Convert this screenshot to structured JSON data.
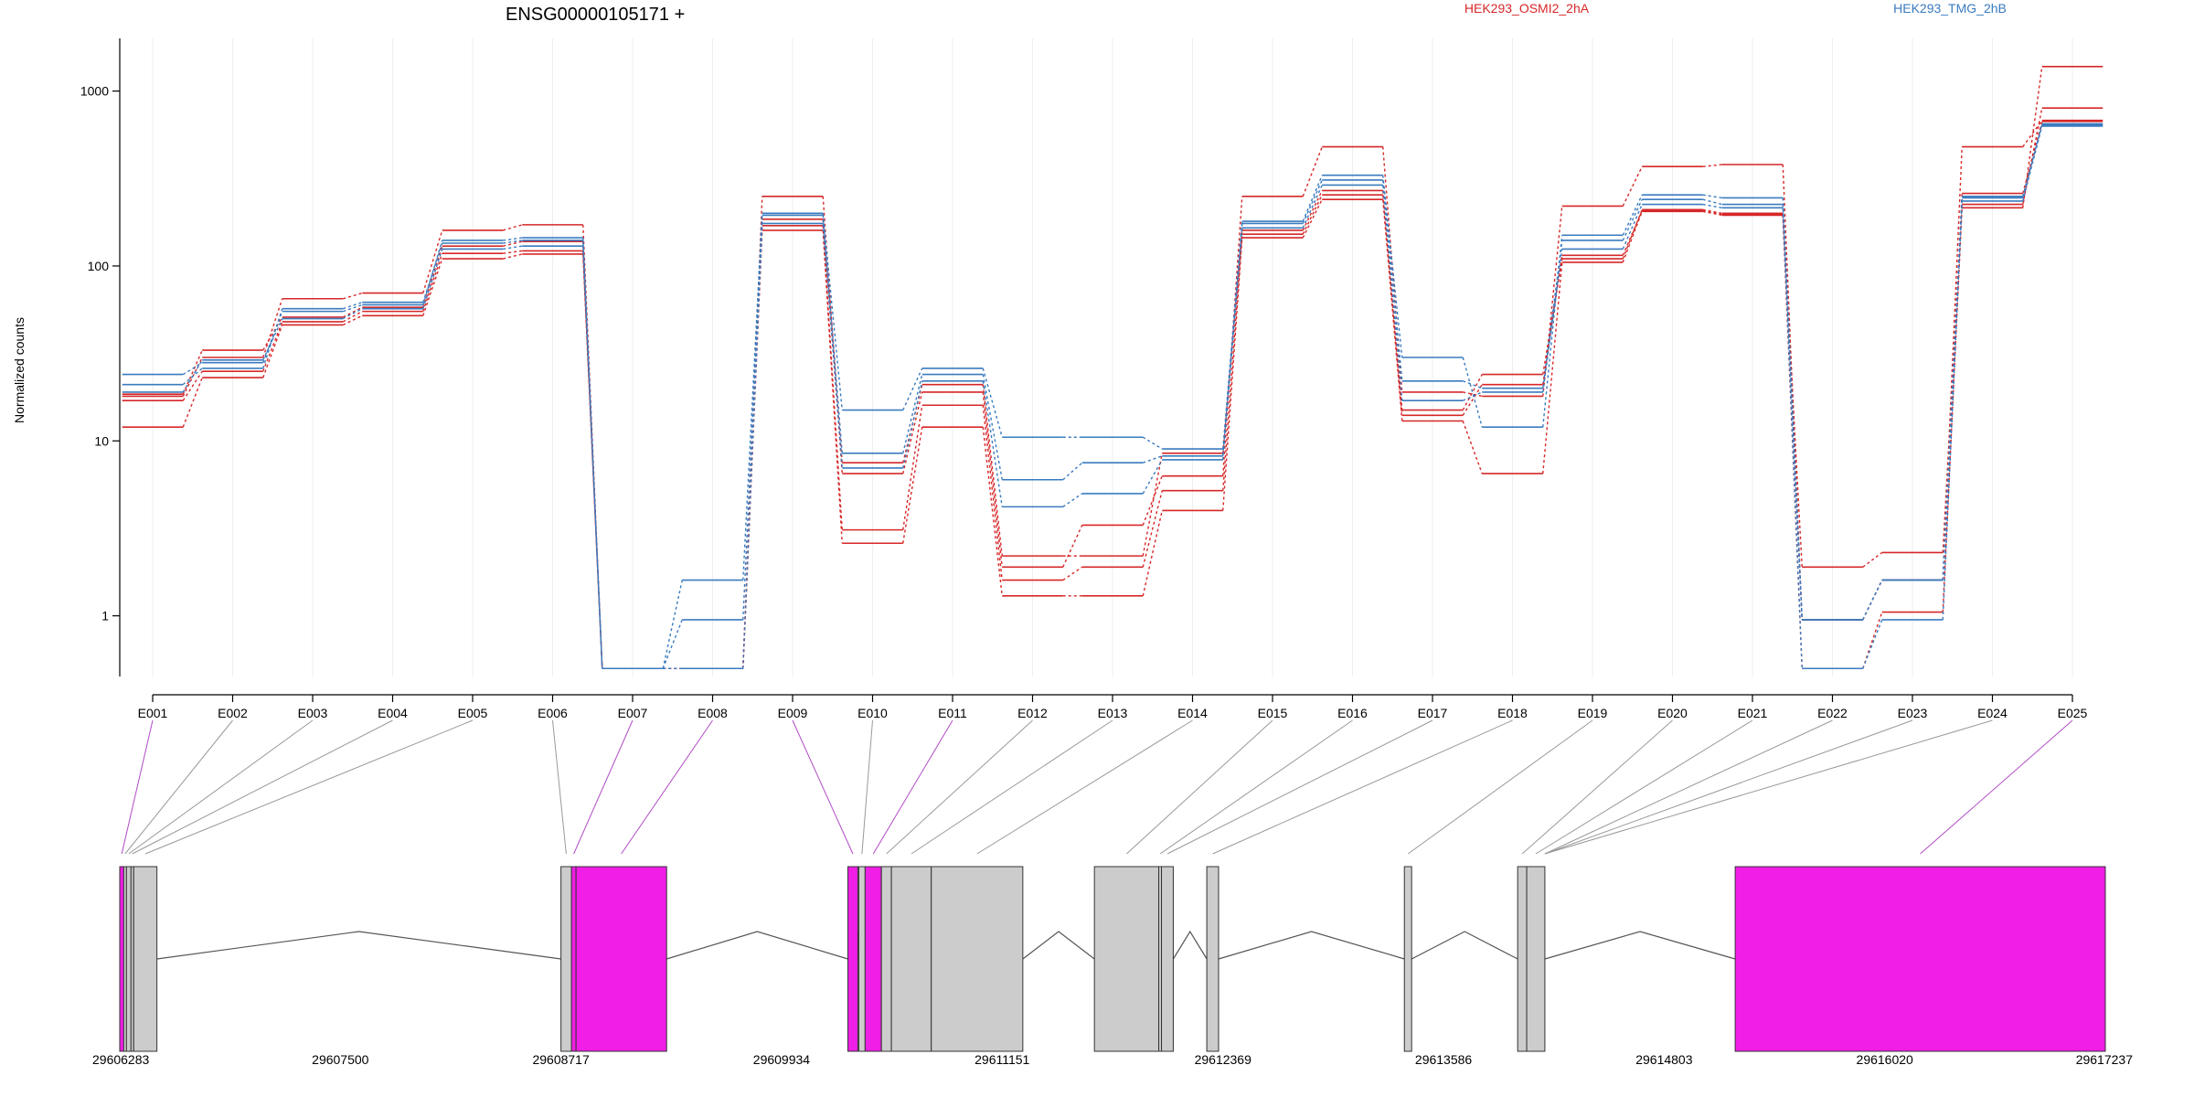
{
  "chart_data": {
    "type": "line",
    "title": "ENSG00000105171 +",
    "ylabel": "Normalized counts",
    "xlabel": "",
    "y_scale": "log",
    "y_ticks": [
      1,
      10,
      100,
      1000
    ],
    "y_tick_labels": [
      "1",
      "10",
      "100",
      "1000"
    ],
    "ylim": [
      0.45,
      2000
    ],
    "legend_placement": "top",
    "grid": "vertical-only",
    "legend": [
      {
        "label": "HEK293_OSMI2_2hA",
        "color": "#d62728"
      },
      {
        "label": "HEK293_TMG_2hB",
        "color": "#3a7bbf"
      }
    ],
    "categories": [
      "E001",
      "E002",
      "E003",
      "E004",
      "E005",
      "E006",
      "E007",
      "E008",
      "E009",
      "E010",
      "E011",
      "E012",
      "E013",
      "E014",
      "E015",
      "E016",
      "E017",
      "E018",
      "E019",
      "E020",
      "E021",
      "E022",
      "E023",
      "E024",
      "E025"
    ],
    "series": [
      {
        "group": 0,
        "values": [
          12,
          23,
          46,
          52,
          110,
          117,
          0.5,
          0.5,
          160,
          2.6,
          12,
          1.3,
          1.3,
          4,
          145,
          240,
          13,
          6.5,
          105,
          205,
          195,
          0.5,
          1.05,
          215,
          1380
        ]
      },
      {
        "group": 0,
        "values": [
          17,
          25,
          48,
          55,
          118,
          122,
          0.5,
          0.5,
          170,
          3.1,
          16,
          1.6,
          1.9,
          5.2,
          152,
          255,
          15,
          24,
          110,
          210,
          200,
          1.9,
          2.3,
          225,
          800
        ]
      },
      {
        "group": 0,
        "values": [
          18,
          30,
          65,
          70,
          160,
          172,
          0.5,
          0.5,
          250,
          6.5,
          19,
          1.9,
          3.3,
          6.3,
          250,
          480,
          19,
          18,
          220,
          370,
          380,
          0.95,
          1.6,
          480,
          680
        ]
      },
      {
        "group": 0,
        "values": [
          18.5,
          33,
          51,
          58,
          130,
          138,
          0.5,
          0.5,
          185,
          7.5,
          21,
          2.2,
          2.2,
          8.5,
          160,
          270,
          14,
          21,
          115,
          207,
          197,
          0.95,
          1.6,
          260,
          670
        ]
      },
      {
        "group": 1,
        "values": [
          24,
          28,
          55,
          60,
          140,
          145,
          0.5,
          1.6,
          200,
          15,
          26,
          10.5,
          10.5,
          9,
          180,
          330,
          30,
          12,
          150,
          255,
          245,
          0.95,
          1.6,
          250,
          640
        ]
      },
      {
        "group": 1,
        "values": [
          21,
          26,
          57,
          62,
          135,
          140,
          0.5,
          0.95,
          195,
          8.5,
          24,
          6,
          7.5,
          8.2,
          175,
          310,
          22,
          20,
          140,
          240,
          225,
          0.5,
          0.95,
          235,
          630
        ]
      },
      {
        "group": 1,
        "values": [
          19,
          29,
          50,
          57,
          125,
          130,
          0.5,
          0.5,
          175,
          7,
          22,
          4.2,
          5,
          7.8,
          165,
          290,
          17,
          19,
          125,
          225,
          215,
          0.95,
          1.6,
          245,
          650
        ]
      }
    ],
    "genomic_axis": {
      "ticks": [
        29606283,
        29607500,
        29608717,
        29609934,
        29611151,
        29612369,
        29613586,
        29614803,
        29616020,
        29617237
      ],
      "tick_labels": [
        "29606283",
        "29607500",
        "29608717",
        "29609934",
        "29611151",
        "29612369",
        "29613586",
        "29614803",
        "29616020",
        "29617237"
      ],
      "range": [
        29606283,
        29617237
      ]
    },
    "exons": [
      {
        "id": "E001",
        "start": 29606283,
        "end": 29606305,
        "highlight": true
      },
      {
        "id": "E002",
        "start": 29606305,
        "end": 29606320,
        "highlight": false
      },
      {
        "id": "E003",
        "start": 29606320,
        "end": 29606345,
        "highlight": false
      },
      {
        "id": "E004",
        "start": 29606345,
        "end": 29606360,
        "highlight": false
      },
      {
        "id": "E005",
        "start": 29606360,
        "end": 29606488,
        "highlight": false
      },
      {
        "id": "E006",
        "start": 29608717,
        "end": 29608775,
        "highlight": false
      },
      {
        "id": "E007",
        "start": 29608775,
        "end": 29608800,
        "highlight": true
      },
      {
        "id": "E008",
        "start": 29608800,
        "end": 29609300,
        "highlight": true
      },
      {
        "id": "E009",
        "start": 29610300,
        "end": 29610355,
        "highlight": true
      },
      {
        "id": "E010",
        "start": 29610360,
        "end": 29610395,
        "highlight": false
      },
      {
        "id": "E011",
        "start": 29610395,
        "end": 29610485,
        "highlight": true
      },
      {
        "id": "E012",
        "start": 29610485,
        "end": 29610540,
        "highlight": false
      },
      {
        "id": "E013",
        "start": 29610540,
        "end": 29610760,
        "highlight": false
      },
      {
        "id": "E014",
        "start": 29610760,
        "end": 29611265,
        "highlight": false
      },
      {
        "id": "E015",
        "start": 29611660,
        "end": 29612015,
        "highlight": false
      },
      {
        "id": "E016",
        "start": 29612015,
        "end": 29612030,
        "highlight": false
      },
      {
        "id": "E017",
        "start": 29612030,
        "end": 29612095,
        "highlight": false
      },
      {
        "id": "E018",
        "start": 29612280,
        "end": 29612345,
        "highlight": false
      },
      {
        "id": "E019",
        "start": 29613370,
        "end": 29613410,
        "highlight": false
      },
      {
        "id": "E020",
        "start": 29613995,
        "end": 29614045,
        "highlight": false
      },
      {
        "id": "E021",
        "start": 29614045,
        "end": 29614145,
        "highlight": false
      },
      {
        "id": "E025",
        "start": 29615195,
        "end": 29617237,
        "highlight": true
      }
    ],
    "introns": [
      {
        "from": 29606488,
        "to": 29608717
      },
      {
        "from": 29609300,
        "to": 29610300
      },
      {
        "from": 29610355,
        "to": 29610360
      },
      {
        "from": 29611265,
        "to": 29611660
      },
      {
        "from": 29612095,
        "to": 29612280
      },
      {
        "from": 29612345,
        "to": 29613370
      },
      {
        "from": 29613410,
        "to": 29613995
      },
      {
        "from": 29614145,
        "to": 29615195
      }
    ],
    "colors": {
      "group0": "#d62728",
      "group1": "#3a7bbf",
      "highlight_exon": "#f01ee6",
      "exon": "#cccccc",
      "highlight_link": "#b04bc4",
      "link": "#999999"
    }
  }
}
